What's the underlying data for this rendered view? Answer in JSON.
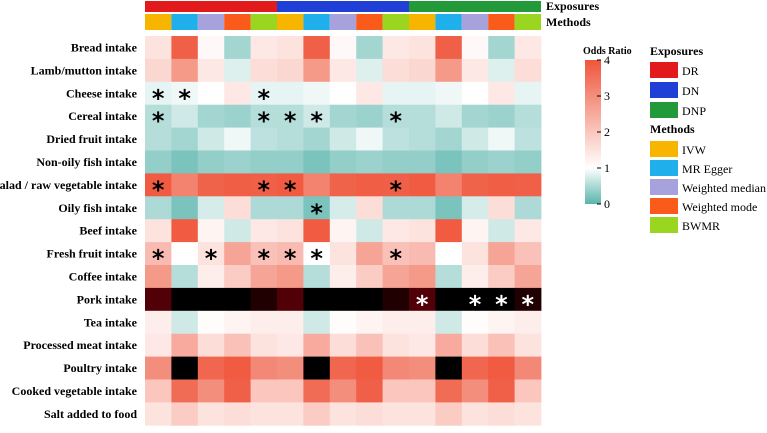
{
  "chart_data": {
    "type": "heatmap",
    "rows": [
      "Bread intake",
      "Lamb/mutton intake",
      "Cheese intake",
      "Cereal intake",
      "Dried fruit intake",
      "Non-oily fish intake",
      "Salad / raw vegetable intake",
      "Oily fish intake",
      "Beef intake",
      "Fresh fruit intake",
      "Coffee intake",
      "Pork intake",
      "Tea intake",
      "Processed meat intake",
      "Poultry intake",
      "Cooked vegetable intake",
      "Salt added to food"
    ],
    "column_groups": {
      "title": "Exposures",
      "groups": [
        {
          "name": "DR",
          "color": "#e31a1c"
        },
        {
          "name": "DN",
          "color": "#1f3fd6"
        },
        {
          "name": "DNP",
          "color": "#229a3a"
        }
      ],
      "columns_per_group": 5
    },
    "methods": {
      "title": "Methods",
      "items": [
        {
          "name": "IVW",
          "color": "#f7b500"
        },
        {
          "name": "MR Egger",
          "color": "#1fb0ec"
        },
        {
          "name": "Weighted median",
          "color": "#a8a2dc"
        },
        {
          "name": "Weighted mode",
          "color": "#fa5a1a"
        },
        {
          "name": "BWMR",
          "color": "#9ad61f"
        }
      ]
    },
    "values": [
      [
        1.5,
        3.8,
        1.1,
        0.45,
        1.4,
        1.5,
        3.8,
        1.1,
        0.45,
        1.4,
        1.5,
        3.8,
        1.1,
        0.45,
        1.4
      ],
      [
        1.7,
        2.8,
        1.4,
        0.8,
        1.6,
        1.7,
        2.8,
        1.4,
        0.8,
        1.6,
        1.7,
        2.8,
        1.4,
        0.8,
        1.6
      ],
      [
        0.85,
        0.9,
        1.0,
        1.4,
        0.85,
        0.85,
        0.9,
        1.0,
        1.4,
        0.85,
        0.85,
        0.9,
        1.0,
        1.4,
        0.85
      ],
      [
        0.55,
        0.7,
        0.45,
        0.4,
        0.55,
        0.55,
        0.7,
        0.45,
        0.4,
        0.55,
        0.55,
        0.7,
        0.45,
        0.4,
        0.55
      ],
      [
        0.55,
        0.45,
        0.7,
        0.9,
        0.6,
        0.55,
        0.45,
        0.7,
        0.9,
        0.6,
        0.55,
        0.45,
        0.7,
        0.9,
        0.6
      ],
      [
        0.35,
        0.2,
        0.35,
        0.4,
        0.35,
        0.35,
        0.2,
        0.35,
        0.4,
        0.35,
        0.35,
        0.2,
        0.35,
        0.4,
        0.35
      ],
      [
        3.9,
        3.2,
        3.75,
        3.85,
        3.8,
        3.9,
        3.2,
        3.75,
        3.85,
        3.8,
        3.9,
        3.2,
        3.75,
        3.85,
        3.8
      ],
      [
        0.5,
        0.2,
        0.75,
        1.6,
        0.5,
        0.5,
        0.2,
        0.75,
        1.6,
        0.5,
        0.5,
        0.2,
        0.75,
        1.6,
        0.5
      ],
      [
        1.5,
        3.9,
        1.2,
        0.7,
        1.4,
        1.5,
        3.9,
        1.2,
        0.7,
        1.4,
        1.5,
        3.9,
        1.2,
        0.7,
        1.4
      ],
      [
        2.2,
        1.0,
        1.5,
        2.6,
        2.1,
        2.2,
        1.0,
        1.5,
        2.6,
        2.1,
        2.2,
        1.0,
        1.5,
        2.6,
        2.1
      ],
      [
        2.8,
        0.55,
        1.3,
        1.9,
        2.6,
        2.8,
        0.55,
        1.3,
        1.9,
        2.6,
        2.8,
        0.55,
        1.3,
        1.9,
        2.6
      ],
      [
        6.5,
        9.0,
        9.0,
        9.0,
        7.0,
        6.5,
        9.0,
        9.0,
        9.0,
        7.0,
        6.5,
        9.0,
        9.0,
        9.0,
        7.0
      ],
      [
        1.3,
        0.7,
        1.05,
        1.2,
        1.3,
        1.3,
        0.7,
        1.05,
        1.2,
        1.3,
        1.3,
        0.7,
        1.05,
        1.2,
        1.3
      ],
      [
        1.4,
        2.5,
        1.6,
        2.1,
        1.5,
        1.4,
        2.5,
        1.6,
        2.1,
        1.5,
        1.4,
        2.5,
        1.6,
        2.1,
        1.5
      ],
      [
        3.0,
        9.0,
        3.7,
        3.9,
        3.1,
        3.0,
        9.0,
        3.7,
        3.9,
        3.1,
        3.0,
        9.0,
        3.7,
        3.9,
        3.1
      ],
      [
        2.0,
        3.6,
        3.0,
        3.8,
        2.0,
        2.0,
        3.6,
        3.0,
        3.8,
        2.0,
        2.0,
        3.6,
        3.0,
        3.8,
        2.0
      ],
      [
        1.5,
        1.9,
        1.5,
        1.6,
        1.5,
        1.5,
        1.9,
        1.5,
        1.6,
        1.5,
        1.5,
        1.9,
        1.5,
        1.6,
        1.5
      ]
    ],
    "significance_marks": [
      {
        "row": 2,
        "col": 0,
        "color": "black"
      },
      {
        "row": 2,
        "col": 1,
        "color": "black"
      },
      {
        "row": 2,
        "col": 4,
        "color": "black"
      },
      {
        "row": 3,
        "col": 0,
        "color": "black"
      },
      {
        "row": 3,
        "col": 4,
        "color": "black"
      },
      {
        "row": 3,
        "col": 5,
        "color": "black"
      },
      {
        "row": 3,
        "col": 6,
        "color": "black"
      },
      {
        "row": 3,
        "col": 9,
        "color": "black"
      },
      {
        "row": 6,
        "col": 0,
        "color": "black"
      },
      {
        "row": 6,
        "col": 4,
        "color": "black"
      },
      {
        "row": 6,
        "col": 5,
        "color": "black"
      },
      {
        "row": 6,
        "col": 9,
        "color": "black"
      },
      {
        "row": 7,
        "col": 6,
        "color": "black"
      },
      {
        "row": 9,
        "col": 0,
        "color": "black"
      },
      {
        "row": 9,
        "col": 2,
        "color": "black"
      },
      {
        "row": 9,
        "col": 4,
        "color": "black"
      },
      {
        "row": 9,
        "col": 5,
        "color": "black"
      },
      {
        "row": 9,
        "col": 6,
        "color": "black"
      },
      {
        "row": 9,
        "col": 9,
        "color": "black"
      },
      {
        "row": 11,
        "col": 10,
        "color": "white"
      },
      {
        "row": 11,
        "col": 12,
        "color": "white"
      },
      {
        "row": 11,
        "col": 13,
        "color": "white"
      },
      {
        "row": 11,
        "col": 14,
        "color": "white"
      }
    ],
    "colorbar": {
      "title": "Odds Ratio",
      "ticks": [
        0,
        1,
        2,
        3,
        4
      ],
      "range": [
        0,
        4
      ],
      "low_color": "#5ab4ac",
      "mid_color": "#ffffff",
      "high_color": "#ef553b"
    },
    "legend_placement": "right"
  }
}
